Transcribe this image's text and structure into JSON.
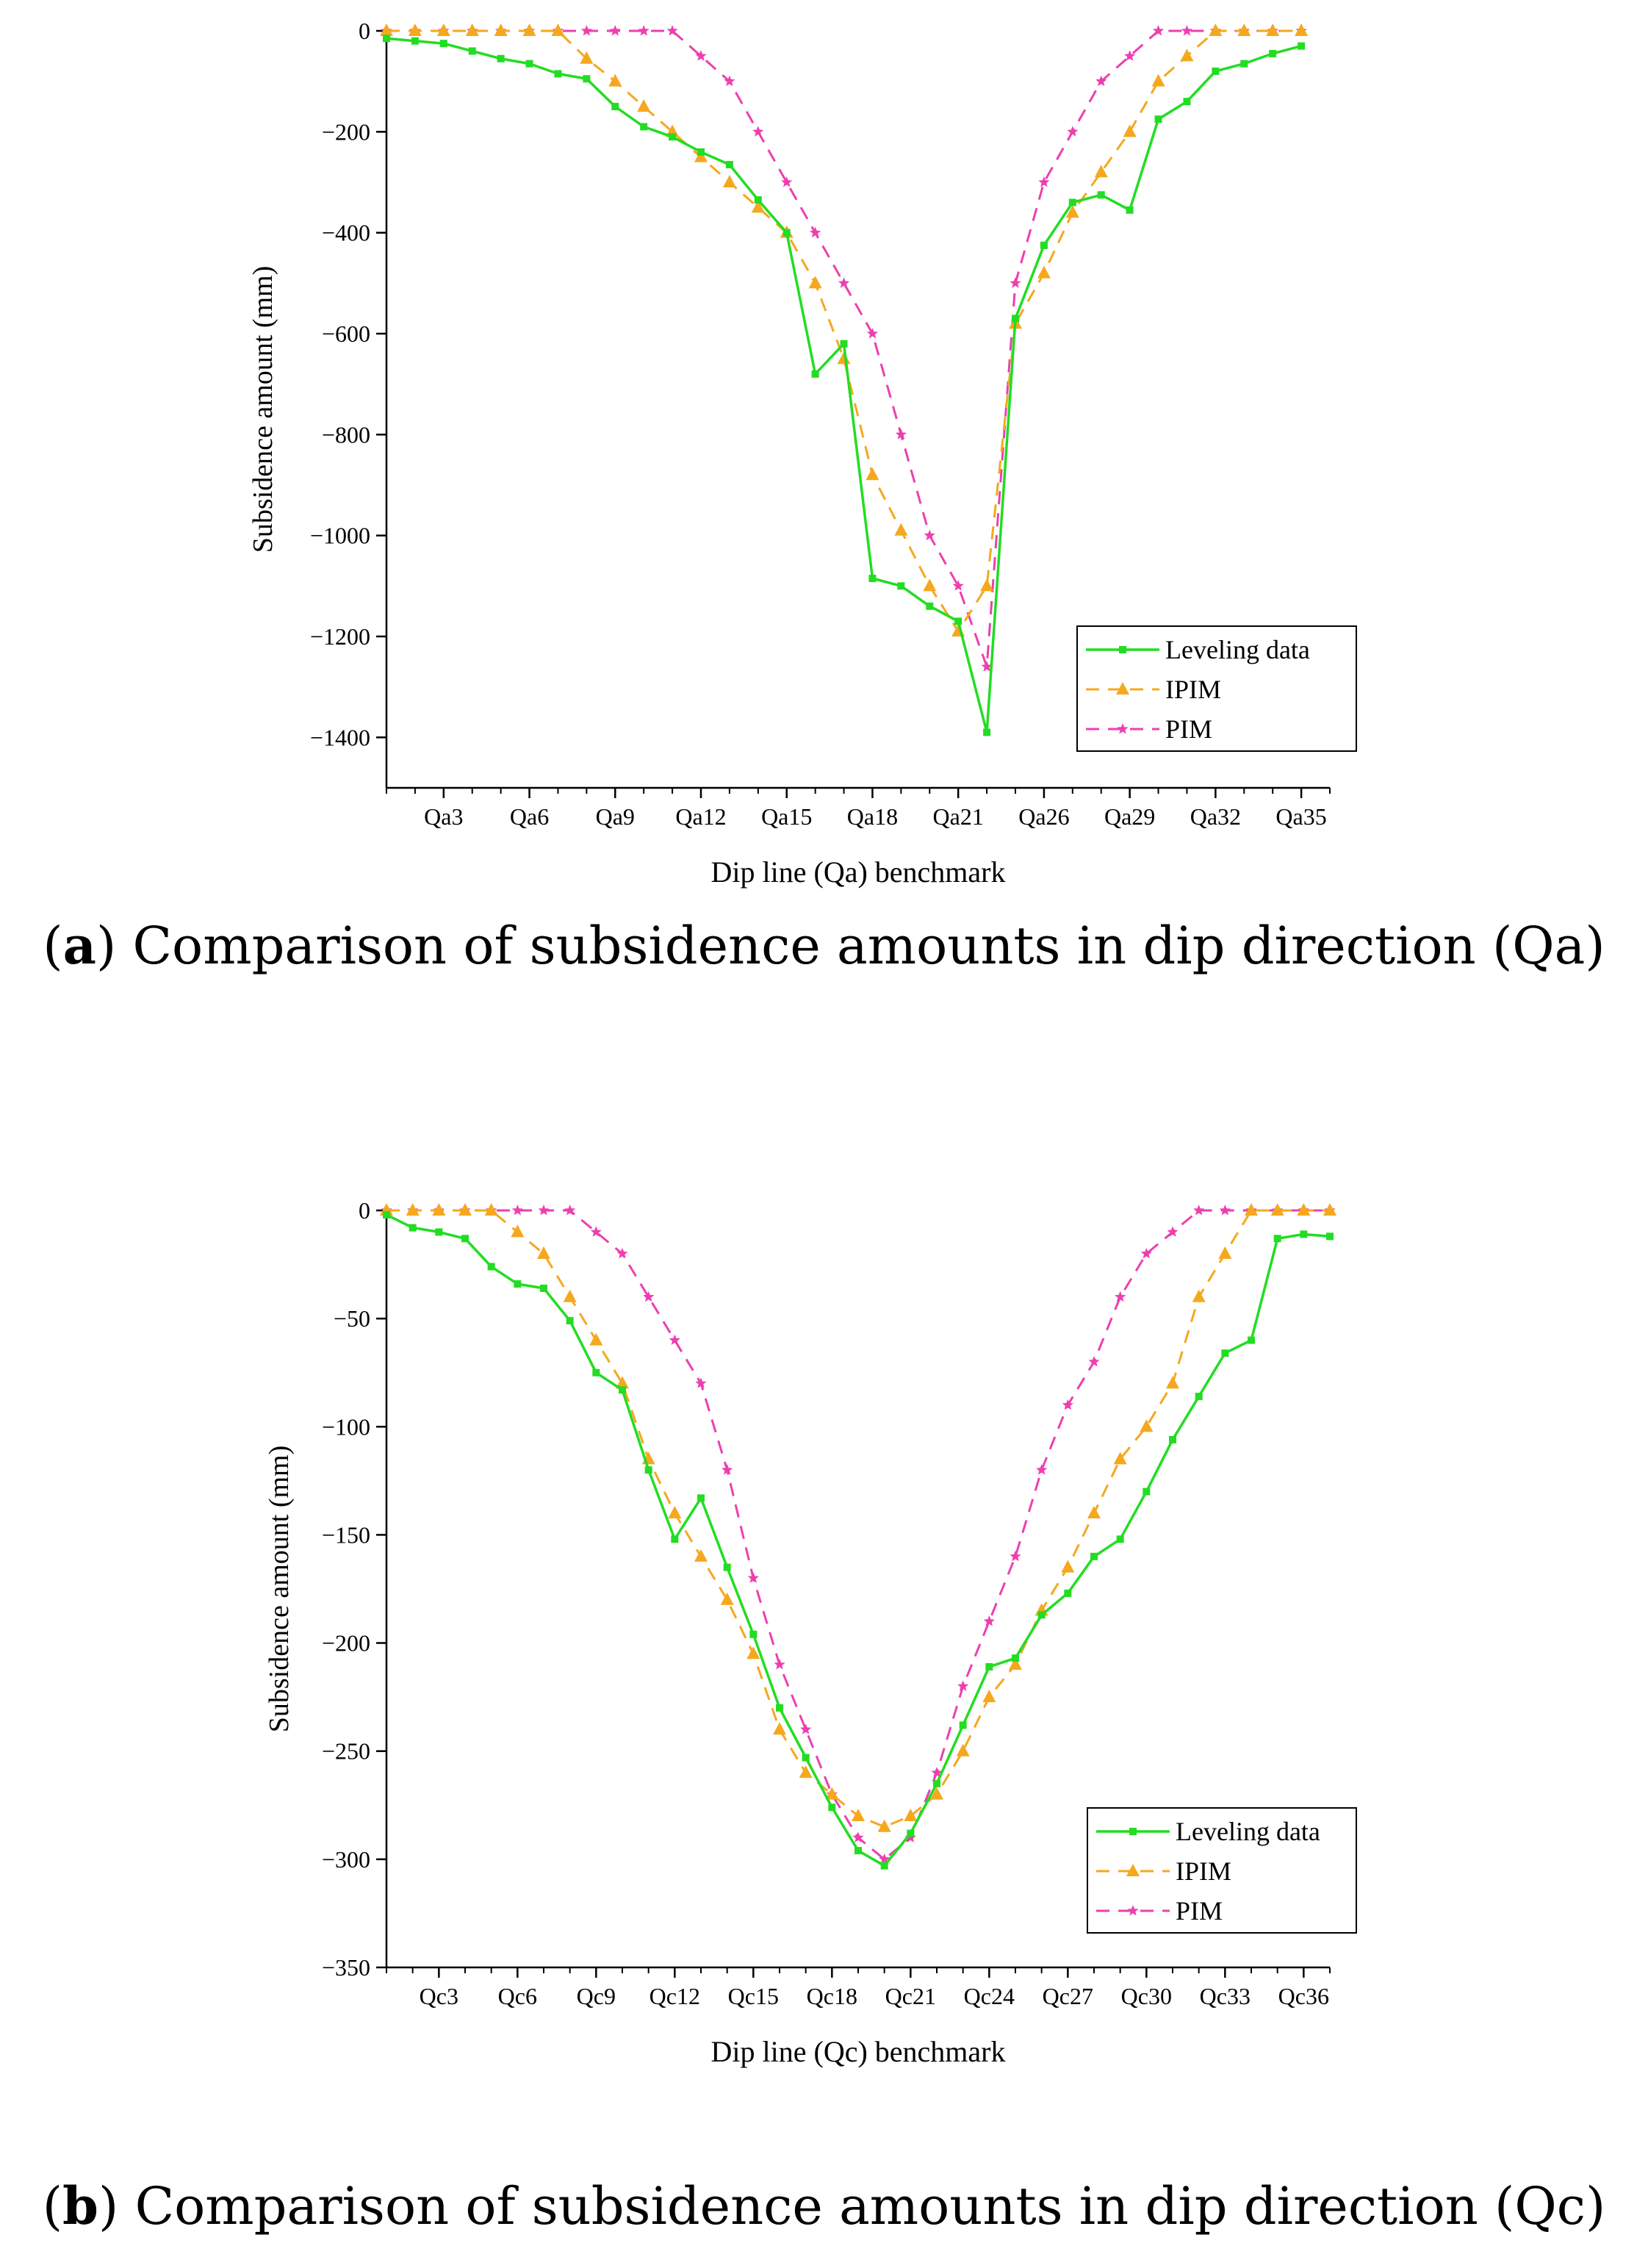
{
  "captions": [
    {
      "letter": "a",
      "text": " Comparison of subsidence amounts in dip direction (Qa)"
    },
    {
      "letter": "b",
      "text": " Comparison of subsidence amounts in dip direction (Qc)"
    }
  ],
  "colors": {
    "leveling": "#22dd22",
    "ipim": "#f5a81e",
    "pim": "#ee3fb0",
    "axis": "#000000"
  },
  "chart_data": [
    {
      "type": "line",
      "title": "",
      "xlabel": "Dip line (Qa) benchmark",
      "ylabel": "Subsidence amount (mm)",
      "ylim": [
        -1500,
        0
      ],
      "yticks": [
        0,
        -200,
        -400,
        -600,
        -800,
        -1000,
        -1200,
        -1400
      ],
      "ytick_labels": [
        "0",
        "−200",
        "−400",
        "−600",
        "−800",
        "−1000",
        "−1200",
        "−1400"
      ],
      "xlim": [
        0,
        33
      ],
      "xtick_positions": [
        2,
        5,
        8,
        11,
        14,
        17,
        20,
        23,
        26,
        29,
        32
      ],
      "xtick_labels": [
        "Qa3",
        "Qa6",
        "Qa9",
        "Qa12",
        "Qa15",
        "Qa18",
        "Qa21",
        "Qa26",
        "Qa29",
        "Qa32",
        "Qa35"
      ],
      "legend_position": "bottom-right",
      "series": [
        {
          "name": "Leveling data",
          "key": "leveling",
          "style": "solid",
          "marker": "square",
          "x": [
            0,
            1,
            2,
            3,
            4,
            5,
            6,
            7,
            8,
            9,
            10,
            11,
            12,
            13,
            14,
            15,
            16,
            17,
            18,
            19,
            20,
            21,
            22,
            23,
            24,
            25,
            26,
            27,
            28,
            29,
            30,
            31,
            32
          ],
          "values": [
            -15,
            -20,
            -25,
            -40,
            -55,
            -65,
            -85,
            -95,
            -150,
            -190,
            -210,
            -240,
            -265,
            -335,
            -400,
            -680,
            -620,
            -1085,
            -1100,
            -1140,
            -1170,
            -1390,
            -570,
            -425,
            -340,
            -325,
            -355,
            -175,
            -140,
            -80,
            -65,
            -45,
            -30
          ]
        },
        {
          "name": "IPIM",
          "key": "ipim",
          "style": "dashed",
          "marker": "triangle",
          "x": [
            0,
            1,
            2,
            3,
            4,
            5,
            6,
            7,
            8,
            9,
            10,
            11,
            12,
            13,
            14,
            15,
            16,
            17,
            18,
            19,
            20,
            21,
            22,
            23,
            24,
            25,
            26,
            27,
            28,
            29,
            30,
            31,
            32
          ],
          "values": [
            0,
            0,
            0,
            0,
            0,
            0,
            0,
            -55,
            -100,
            -150,
            -200,
            -250,
            -300,
            -350,
            -400,
            -500,
            -650,
            -880,
            -990,
            -1100,
            -1190,
            -1100,
            -580,
            -480,
            -360,
            -280,
            -200,
            -100,
            -50,
            0,
            0,
            0,
            0
          ]
        },
        {
          "name": "PIM",
          "key": "pim",
          "style": "dashed",
          "marker": "star",
          "x": [
            0,
            1,
            2,
            3,
            4,
            5,
            6,
            7,
            8,
            9,
            10,
            11,
            12,
            13,
            14,
            15,
            16,
            17,
            18,
            19,
            20,
            21,
            22,
            23,
            24,
            25,
            26,
            27,
            28,
            29,
            30,
            31,
            32
          ],
          "values": [
            0,
            0,
            0,
            0,
            0,
            0,
            0,
            0,
            0,
            0,
            0,
            -50,
            -100,
            -200,
            -300,
            -400,
            -500,
            -600,
            -800,
            -1000,
            -1100,
            -1260,
            -500,
            -300,
            -200,
            -100,
            -50,
            0,
            0,
            0,
            0,
            0,
            0
          ]
        }
      ]
    },
    {
      "type": "line",
      "title": "",
      "xlabel": "Dip line (Qc) benchmark",
      "ylabel": "Subsidence amount (mm)",
      "ylim": [
        -350,
        0
      ],
      "yticks": [
        0,
        -50,
        -100,
        -150,
        -200,
        -250,
        -300,
        -350
      ],
      "ytick_labels": [
        "0",
        "−50",
        "−100",
        "−150",
        "−200",
        "−250",
        "−300",
        "−350"
      ],
      "xlim": [
        0,
        36
      ],
      "xtick_positions": [
        2,
        5,
        8,
        11,
        14,
        17,
        20,
        23,
        26,
        29,
        32,
        35
      ],
      "xtick_labels": [
        "Qc3",
        "Qc6",
        "Qc9",
        "Qc12",
        "Qc15",
        "Qc18",
        "Qc21",
        "Qc24",
        "Qc27",
        "Qc30",
        "Qc33",
        "Qc36"
      ],
      "legend_position": "bottom-right",
      "series": [
        {
          "name": "Leveling data",
          "key": "leveling",
          "style": "solid",
          "marker": "square",
          "x": [
            0,
            1,
            2,
            3,
            4,
            5,
            6,
            7,
            8,
            9,
            10,
            11,
            12,
            13,
            14,
            15,
            16,
            17,
            18,
            19,
            20,
            21,
            22,
            23,
            24,
            25,
            26,
            27,
            28,
            29,
            30,
            31,
            32,
            33,
            34,
            35,
            36
          ],
          "values": [
            -2,
            -8,
            -10,
            -13,
            -26,
            -34,
            -36,
            -51,
            -75,
            -83,
            -120,
            -152,
            -133,
            -165,
            -196,
            -230,
            -253,
            -276,
            -296,
            -303,
            -288,
            -265,
            -238,
            -211,
            -207,
            -187,
            -177,
            -160,
            -152,
            -130,
            -106,
            -86,
            -66,
            -60,
            -13,
            -11,
            -12
          ]
        },
        {
          "name": "IPIM",
          "key": "ipim",
          "style": "dashed",
          "marker": "triangle",
          "x": [
            0,
            1,
            2,
            3,
            4,
            5,
            6,
            7,
            8,
            9,
            10,
            11,
            12,
            13,
            14,
            15,
            16,
            17,
            18,
            19,
            20,
            21,
            22,
            23,
            24,
            25,
            26,
            27,
            28,
            29,
            30,
            31,
            32,
            33,
            34,
            35,
            36
          ],
          "values": [
            0,
            0,
            0,
            0,
            0,
            -10,
            -20,
            -40,
            -60,
            -80,
            -115,
            -140,
            -160,
            -180,
            -205,
            -240,
            -260,
            -270,
            -280,
            -285,
            -280,
            -270,
            -250,
            -225,
            -210,
            -185,
            -165,
            -140,
            -115,
            -100,
            -80,
            -40,
            -20,
            0,
            0,
            0,
            0
          ]
        },
        {
          "name": "PIM",
          "key": "pim",
          "style": "dashed",
          "marker": "star",
          "x": [
            0,
            1,
            2,
            3,
            4,
            5,
            6,
            7,
            8,
            9,
            10,
            11,
            12,
            13,
            14,
            15,
            16,
            17,
            18,
            19,
            20,
            21,
            22,
            23,
            24,
            25,
            26,
            27,
            28,
            29,
            30,
            31,
            32,
            33,
            34,
            35,
            36
          ],
          "values": [
            0,
            0,
            0,
            0,
            0,
            0,
            0,
            0,
            -10,
            -20,
            -40,
            -60,
            -80,
            -120,
            -170,
            -210,
            -240,
            -270,
            -290,
            -300,
            -290,
            -260,
            -220,
            -190,
            -160,
            -120,
            -90,
            -70,
            -40,
            -20,
            -10,
            0,
            0,
            0,
            0,
            0,
            0
          ]
        }
      ]
    }
  ]
}
